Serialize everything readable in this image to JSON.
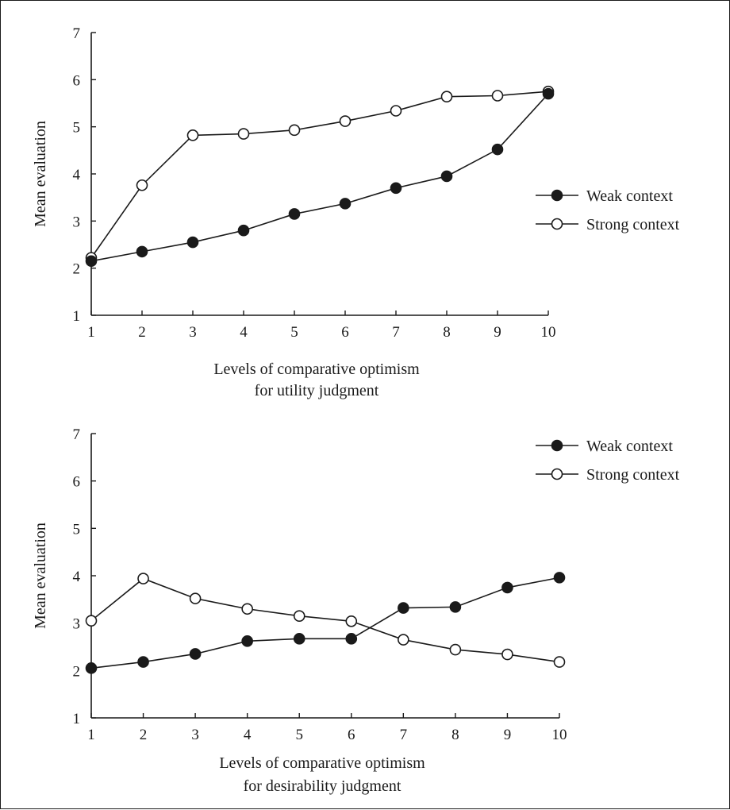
{
  "chart_data": [
    {
      "type": "line",
      "title": "",
      "xlabel": [
        "Levels of comparative optimism",
        "for utility judgment"
      ],
      "ylabel": "Mean evaluation",
      "x": [
        1,
        2,
        3,
        4,
        5,
        6,
        7,
        8,
        9,
        10
      ],
      "xlim": [
        1,
        10
      ],
      "ylim": [
        1,
        7
      ],
      "yticks": [
        1,
        2,
        3,
        4,
        5,
        6,
        7
      ],
      "grid": false,
      "legend_position": "right",
      "series": [
        {
          "name": "Weak context",
          "marker": "filled-circle",
          "color": "#1a1a1a",
          "values": [
            2.15,
            2.35,
            2.55,
            2.8,
            3.15,
            3.37,
            3.7,
            3.95,
            4.52,
            5.7
          ]
        },
        {
          "name": "Strong context",
          "marker": "open-circle",
          "color": "#1a1a1a",
          "values": [
            2.22,
            3.76,
            4.82,
            4.85,
            4.93,
            5.12,
            5.34,
            5.64,
            5.66,
            5.75
          ]
        }
      ]
    },
    {
      "type": "line",
      "title": "",
      "xlabel": [
        "Levels of comparative optimism",
        "for desirability judgment"
      ],
      "ylabel": "Mean evaluation",
      "x": [
        1,
        2,
        3,
        4,
        5,
        6,
        7,
        8,
        9,
        10
      ],
      "xlim": [
        1,
        10
      ],
      "ylim": [
        1,
        7
      ],
      "yticks": [
        1,
        2,
        3,
        4,
        5,
        6,
        7
      ],
      "grid": false,
      "legend_position": "top-right",
      "series": [
        {
          "name": "Weak context",
          "marker": "filled-circle",
          "color": "#1a1a1a",
          "values": [
            2.05,
            2.18,
            2.35,
            2.62,
            2.67,
            2.67,
            3.32,
            3.34,
            3.75,
            3.96
          ]
        },
        {
          "name": "Strong context",
          "marker": "open-circle",
          "color": "#1a1a1a",
          "values": [
            3.05,
            3.94,
            3.52,
            3.3,
            3.15,
            3.04,
            2.65,
            2.44,
            2.34,
            2.18
          ]
        }
      ]
    }
  ]
}
